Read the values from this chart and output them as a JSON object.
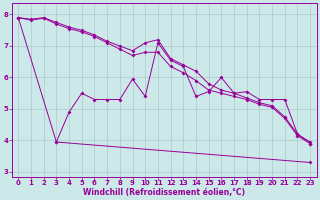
{
  "line_top1": {
    "x": [
      0,
      1,
      2,
      3,
      4,
      5,
      6,
      7,
      8,
      9,
      10,
      11,
      12,
      13,
      14,
      15,
      16,
      17,
      18,
      19,
      20,
      21,
      22,
      23
    ],
    "y": [
      7.9,
      7.85,
      7.9,
      7.75,
      7.6,
      7.5,
      7.35,
      7.15,
      7.0,
      6.85,
      7.1,
      7.2,
      6.6,
      6.4,
      6.2,
      5.8,
      5.6,
      5.5,
      5.35,
      5.2,
      5.1,
      4.75,
      4.2,
      3.95
    ]
  },
  "line_top2": {
    "x": [
      0,
      1,
      2,
      3,
      4,
      5,
      6,
      7,
      8,
      9,
      10,
      11,
      12,
      13,
      14,
      15,
      16,
      17,
      18,
      19,
      20,
      21,
      22,
      23
    ],
    "y": [
      7.9,
      7.82,
      7.88,
      7.7,
      7.55,
      7.45,
      7.3,
      7.1,
      6.9,
      6.7,
      6.8,
      6.8,
      6.35,
      6.15,
      5.9,
      5.6,
      5.5,
      5.4,
      5.3,
      5.15,
      5.05,
      4.7,
      4.15,
      3.9
    ]
  },
  "line_mid": {
    "x": [
      3,
      4,
      5,
      6,
      7,
      8,
      9,
      10,
      11,
      12,
      13,
      14,
      15,
      16,
      17,
      18,
      19,
      20,
      21,
      22,
      23
    ],
    "y": [
      3.95,
      4.9,
      5.5,
      5.3,
      5.3,
      5.3,
      5.95,
      5.4,
      7.1,
      6.55,
      6.35,
      5.4,
      5.55,
      6.0,
      5.5,
      5.55,
      5.3,
      5.3,
      5.3,
      4.2,
      3.9
    ]
  },
  "line_bot": {
    "x": [
      0,
      3,
      23
    ],
    "y": [
      7.9,
      3.95,
      3.3
    ]
  },
  "color": "#990099",
  "bg_color": "#cce8e8",
  "grid_color": "#aacccc",
  "xlabel": "Windchill (Refroidissement éolien,°C)",
  "xlim": [
    -0.5,
    23.5
  ],
  "ylim": [
    2.85,
    8.35
  ],
  "yticks": [
    3,
    4,
    5,
    6,
    7,
    8
  ],
  "xticks": [
    0,
    1,
    2,
    3,
    4,
    5,
    6,
    7,
    8,
    9,
    10,
    11,
    12,
    13,
    14,
    15,
    16,
    17,
    18,
    19,
    20,
    21,
    22,
    23
  ],
  "tick_fontsize": 5,
  "label_fontsize": 5.5
}
